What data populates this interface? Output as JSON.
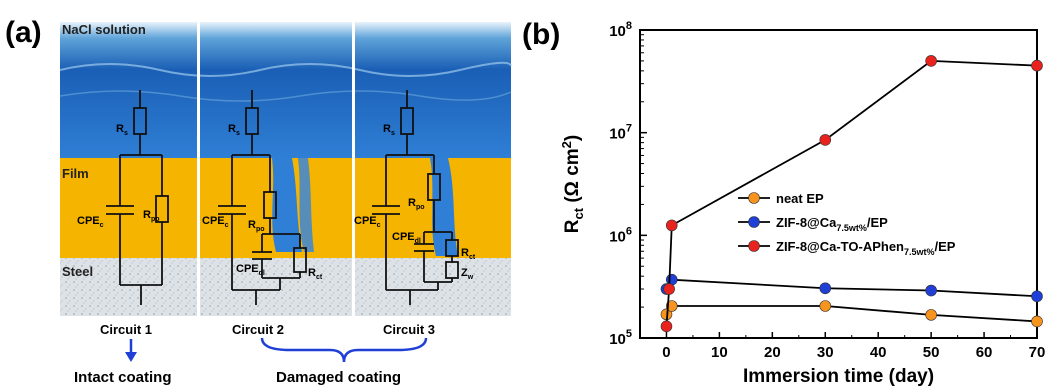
{
  "panel_a": {
    "label": "(a)",
    "solution_label": "NaCl solution",
    "film_label": "Film",
    "steel_label": "Steel",
    "components": {
      "rs": "R",
      "rs_sub": "s",
      "cpec": "CPE",
      "cpec_sub": "c",
      "rpo": "R",
      "rpo_sub": "po",
      "cpedl": "CPE",
      "cpedl_sub": "dl",
      "rct": "R",
      "rct_sub": "ct",
      "zw": "Z",
      "zw_sub": "w"
    },
    "circuits": [
      "Circuit 1",
      "Circuit 2",
      "Circuit 3"
    ],
    "bottom_labels": [
      "Intact coating",
      "Damaged coating"
    ],
    "colors": {
      "water": "#1f6fd1",
      "film": "#f5b400",
      "steel": "#d8dde3"
    }
  },
  "panel_b": {
    "label": "(b)"
  },
  "chart_data": {
    "type": "line",
    "xlabel": "Immersion time (day)",
    "ylabel": "R_ct (Ω cm²)",
    "ylabel_parts": {
      "main": "R",
      "sub": "ct",
      "unit": " (Ω cm",
      "sup": "2",
      "close": ")"
    },
    "xlim": [
      -5,
      70
    ],
    "ylim": [
      100000,
      100000000
    ],
    "yscale": "log",
    "x_ticks": [
      0,
      10,
      20,
      30,
      40,
      50,
      60,
      70
    ],
    "y_ticks": [
      {
        "value": 100000,
        "base": "10",
        "exp": "5"
      },
      {
        "value": 1000000,
        "base": "10",
        "exp": "6"
      },
      {
        "value": 10000000,
        "base": "10",
        "exp": "7"
      },
      {
        "value": 100000000,
        "base": "10",
        "exp": "8"
      }
    ],
    "legend_position": "center-right",
    "series": [
      {
        "name": "neat EP",
        "name_parts": {
          "main": "neat EP",
          "sub": "",
          "tail": ""
        },
        "color": "#f7941d",
        "x": [
          0,
          1,
          30,
          50,
          70
        ],
        "y": [
          170000,
          205000,
          205000,
          168000,
          145000
        ]
      },
      {
        "name": "ZIF-8@Ca7.5wt%/EP",
        "name_parts": {
          "main": "ZIF-8@Ca",
          "sub": "7.5wt%",
          "tail": "/EP"
        },
        "color": "#1f3fd6",
        "x": [
          0,
          1,
          30,
          50,
          70
        ],
        "y": [
          300000,
          370000,
          305000,
          290000,
          255000
        ]
      },
      {
        "name": "ZIF-8@Ca-TO-APhen7.5wt%/EP",
        "name_parts": {
          "main": "ZIF-8@Ca-TO-APhen",
          "sub": "7.5wt%",
          "tail": "/EP"
        },
        "color": "#e8231e",
        "x": [
          0,
          0.5,
          1,
          30,
          50,
          70
        ],
        "y": [
          130000,
          300000,
          1250000,
          8500000,
          50000000,
          45000000
        ]
      }
    ]
  }
}
